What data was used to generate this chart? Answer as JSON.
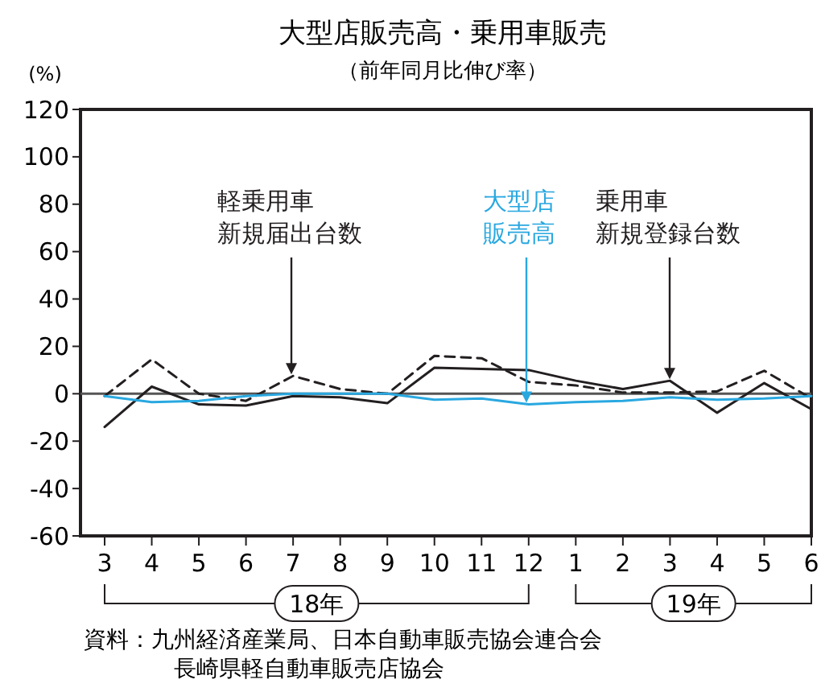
{
  "chart_data": {
    "type": "line",
    "title": "大型店販売高・乗用車販売",
    "subtitle": "（前年同月比伸び率）",
    "ylabel": "(%)",
    "categories": [
      "3",
      "4",
      "5",
      "6",
      "7",
      "8",
      "9",
      "10",
      "11",
      "12",
      "1",
      "2",
      "3",
      "4",
      "5",
      "6"
    ],
    "series": [
      {
        "name": "乗用車新規登録台数",
        "color": "#231f20",
        "line_style": "solid",
        "values": [
          -14,
          3,
          -4.5,
          -5,
          -1,
          -1.5,
          -4,
          11,
          10.5,
          10,
          5.5,
          2,
          5.5,
          -8,
          4.5,
          -6.5
        ]
      },
      {
        "name": "軽乗用車新規届出台数",
        "color": "#231f20",
        "line_style": "dashed",
        "values": [
          -1,
          14.5,
          0,
          -3,
          7.5,
          2,
          0,
          16,
          15,
          5,
          3.5,
          0.5,
          0.5,
          1,
          9.7,
          -2
        ]
      },
      {
        "name": "大型店販売高",
        "color": "#29a8e0",
        "line_style": "solid",
        "values": [
          -1,
          -3.5,
          -3,
          -1,
          0,
          0,
          0,
          -2.5,
          -2,
          -4.5,
          -3.5,
          -3,
          -1.5,
          -2.5,
          -2,
          -1
        ]
      }
    ],
    "ylim": [
      -60,
      120
    ],
    "yticks": [
      -60,
      -40,
      -20,
      0,
      20,
      40,
      60,
      80,
      100,
      120
    ],
    "grid": false,
    "marker": "none",
    "ref_lines": [
      {
        "axis": "y",
        "value": 0,
        "color": "#555555"
      }
    ],
    "annotations": [
      "18年",
      "19年",
      "資料：九州経済産業局、日本自動車販売協会連合会長崎県軽自動車販売店協会"
    ]
  }
}
